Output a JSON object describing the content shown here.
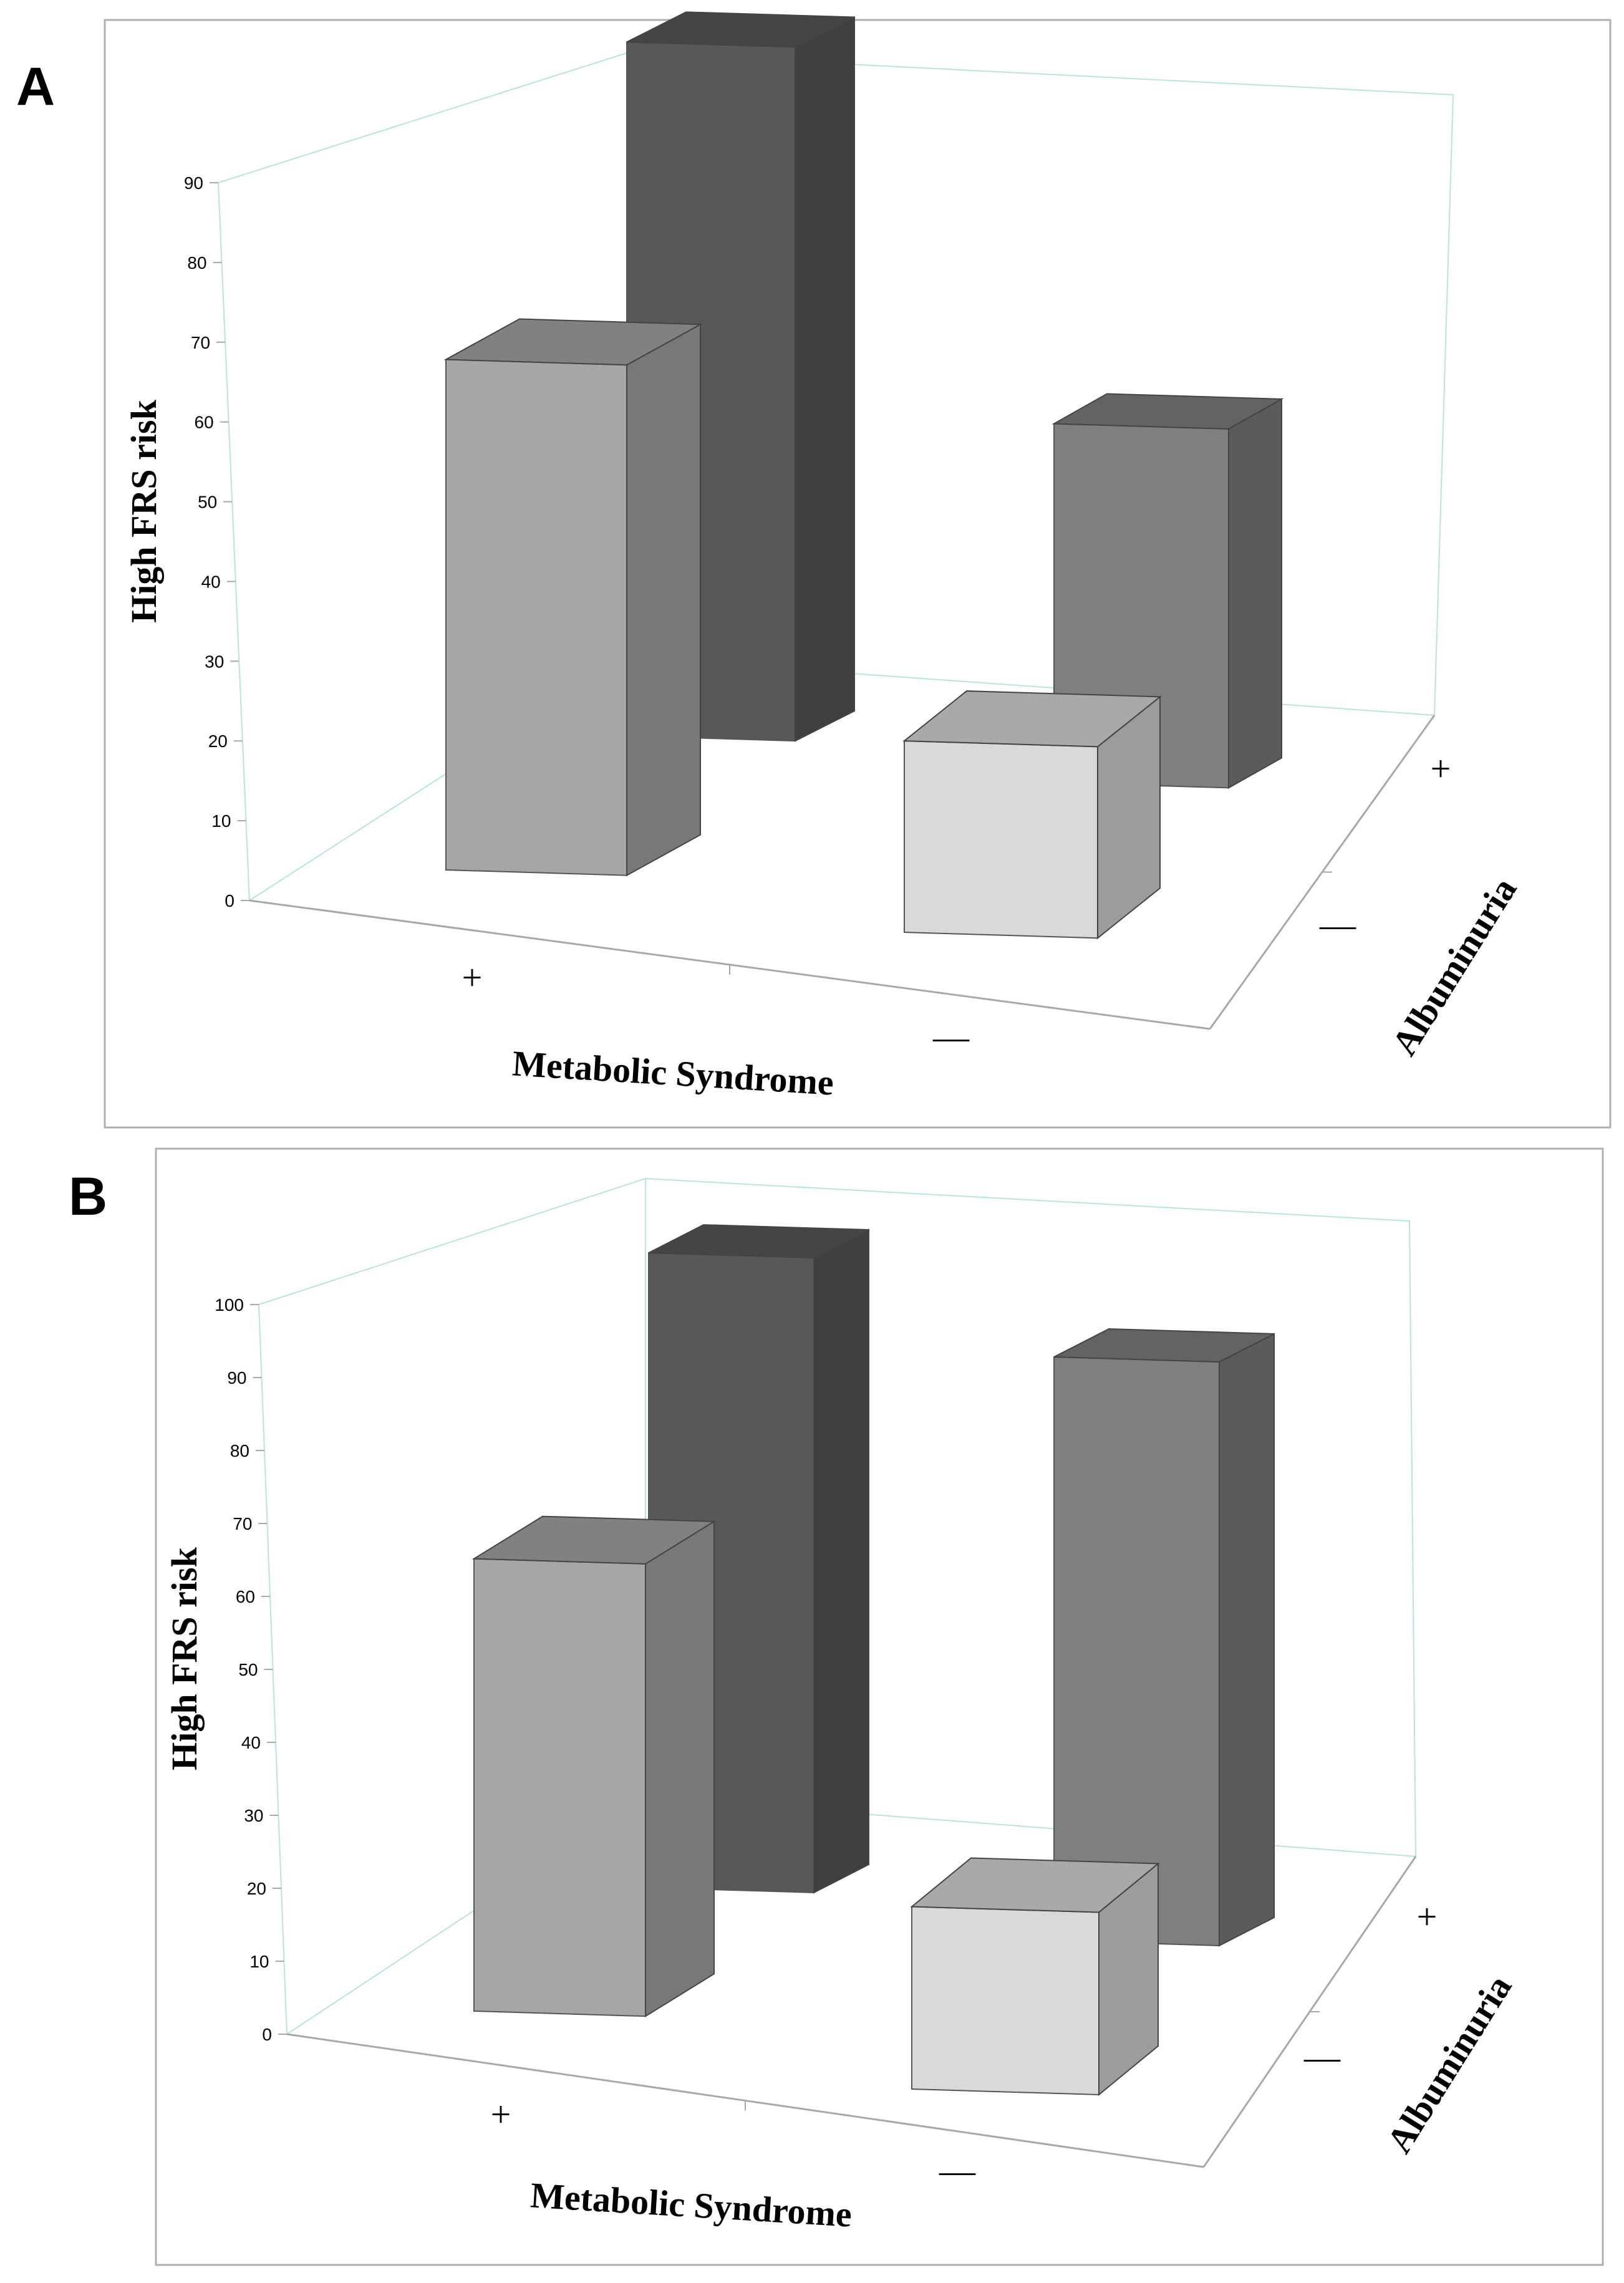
{
  "panels": [
    {
      "label": "A"
    },
    {
      "label": "B"
    }
  ],
  "chart_data": [
    {
      "panel": "A",
      "type": "bar",
      "style": "3d",
      "ylabel": "High FRS risk",
      "xlabel": "Metabolic Syndrome",
      "zlabel": "Albuminuria",
      "ylim": [
        0,
        90
      ],
      "yticks": [
        "0",
        "10",
        "20",
        "30",
        "40",
        "50",
        "60",
        "70",
        "80",
        "90"
      ],
      "categories": [
        "+",
        "—"
      ],
      "series": [
        {
          "name": "+",
          "values": [
            87,
            45
          ],
          "colors": [
            "#585858",
            "#7f7f7f"
          ]
        },
        {
          "name": "—",
          "values": [
            64,
            24
          ],
          "colors": [
            "#a6a6a6",
            "#d9d9d9"
          ]
        }
      ],
      "colors": {
        "wall_line": "#b7e3e3",
        "axis_line": "#a8a8a8"
      }
    },
    {
      "panel": "B",
      "type": "bar",
      "style": "3d",
      "ylabel": "High FRS risk",
      "xlabel": "Metabolic Syndrome",
      "zlabel": "Albuminuria",
      "ylim": [
        0,
        100
      ],
      "yticks": [
        "0",
        "10",
        "20",
        "30",
        "40",
        "50",
        "60",
        "70",
        "80",
        "90",
        "100"
      ],
      "categories": [
        "+",
        "—"
      ],
      "series": [
        {
          "name": "+",
          "values": [
            87,
            80
          ],
          "colors": [
            "#585858",
            "#7f7f7f"
          ]
        },
        {
          "name": "—",
          "values": [
            62,
            25
          ],
          "colors": [
            "#a6a6a6",
            "#d9d9d9"
          ]
        }
      ],
      "colors": {
        "wall_line": "#b7e3e3",
        "axis_line": "#a8a8a8"
      }
    }
  ]
}
